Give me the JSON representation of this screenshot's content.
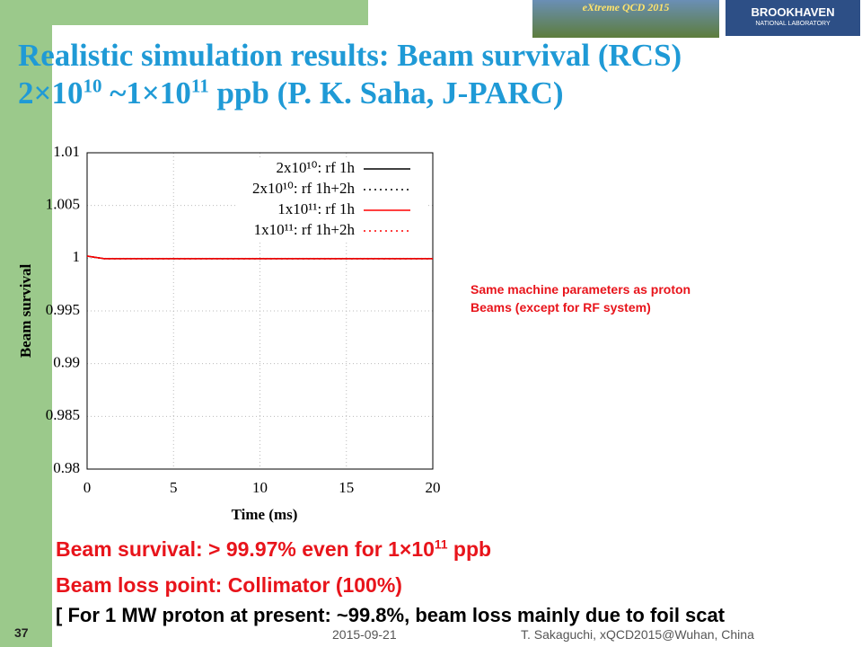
{
  "banner": "eXtreme QCD 2015",
  "logo": [
    "BROOKHAVEN",
    "NATIONAL LABORATORY"
  ],
  "title_line1": "Realistic simulation results: Beam survival (RCS)",
  "title_line2": [
    "2×10",
    "10",
    " ~1×10",
    "11",
    " ppb (P. K. Saha, J-PARC)"
  ],
  "chart_data": {
    "type": "line",
    "xlabel": "Time (ms)",
    "ylabel": "Beam survival",
    "xlim": [
      0,
      20
    ],
    "xticks": [
      0,
      5,
      10,
      15,
      20
    ],
    "ylim": [
      0.98,
      1.01
    ],
    "yticks": [
      0.98,
      0.985,
      0.99,
      0.995,
      1,
      1.005,
      1.01
    ],
    "grid": true,
    "legend": "upper right",
    "x": [
      0,
      1,
      20
    ],
    "series": [
      {
        "name": "2x10¹⁰: rf 1h",
        "color": "#000000",
        "dash": false,
        "values": [
          1.0002,
          0.99995,
          0.99995
        ]
      },
      {
        "name": "2x10¹⁰: rf 1h+2h",
        "color": "#000000",
        "dash": true,
        "values": [
          1.0002,
          0.99995,
          0.99995
        ]
      },
      {
        "name": "1x10¹¹: rf 1h",
        "color": "#ff0000",
        "dash": false,
        "values": [
          1.0002,
          0.99995,
          0.99995
        ]
      },
      {
        "name": "1x10¹¹: rf 1h+2h",
        "color": "#ff0000",
        "dash": true,
        "values": [
          1.0002,
          0.99995,
          0.99995
        ]
      }
    ]
  },
  "note": [
    "Same machine parameters as proton",
    "Beams (except for RF system)"
  ],
  "bullet1": [
    "Beam survival: > 99.97% even for 1×10",
    "11",
    " ppb"
  ],
  "bullet2": "Beam loss point: Collimator (100%)",
  "bullet3": "[ For 1 MW proton at present: ~99.8%, beam loss mainly due to foil scat",
  "footer": {
    "page": "37",
    "date": "2015-09-21",
    "author": "T. Sakaguchi, xQCD2015@Wuhan, China"
  }
}
